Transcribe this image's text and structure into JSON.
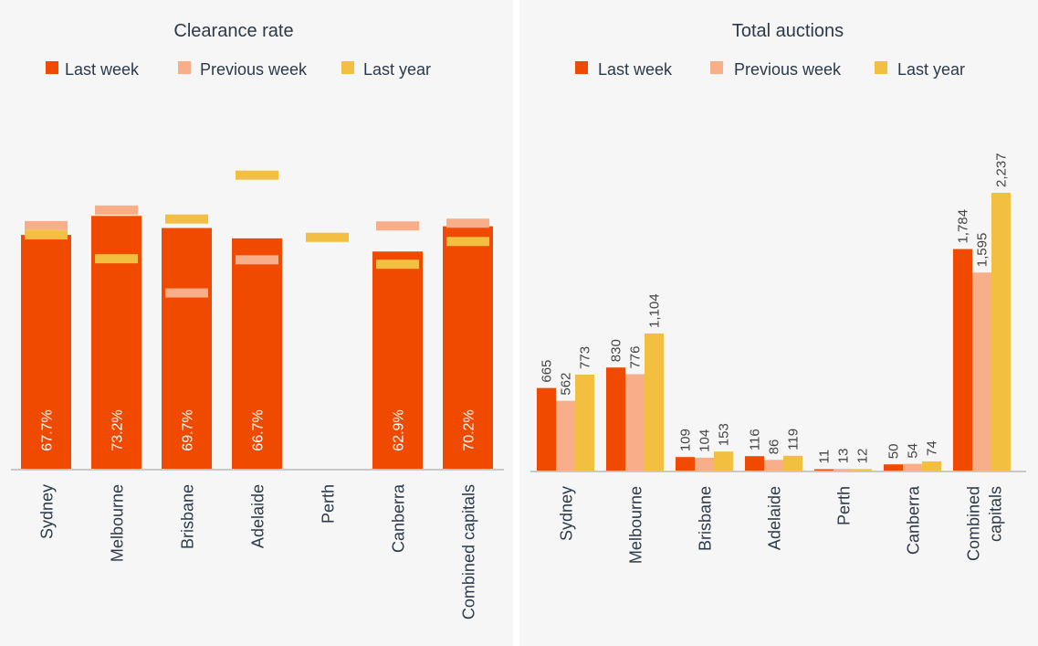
{
  "colors": {
    "last_week": "#f04a00",
    "previous_week": "#f8ae88",
    "last_year": "#f2bf40",
    "background": "#f6f6f6",
    "axis": "#999999"
  },
  "chart_data": [
    {
      "type": "bar",
      "title": "Clearance rate",
      "legend": [
        "Last week",
        "Previous week",
        "Last year"
      ],
      "categories": [
        "Sydney",
        "Melbourne",
        "Brisbane",
        "Adelaide",
        "Perth",
        "Canberra",
        "Combined capitals"
      ],
      "series": [
        {
          "name": "Last week",
          "values": [
            67.7,
            73.2,
            69.7,
            66.7,
            null,
            62.9,
            70.2
          ]
        },
        {
          "name": "Previous week",
          "values": [
            70.4,
            74.9,
            50.9,
            60.5,
            null,
            70.3,
            71.1
          ]
        },
        {
          "name": "Last year",
          "values": [
            67.7,
            60.8,
            72.3,
            85.0,
            67.0,
            59.2,
            65.8
          ]
        }
      ],
      "bar_labels": [
        "67.7%",
        "73.2%",
        "69.7%",
        "66.7%",
        "",
        "62.9%",
        "70.2%"
      ],
      "ylim": [
        0,
        100
      ],
      "xlabel": "",
      "ylabel": "",
      "legend_position": "top"
    },
    {
      "type": "bar",
      "title": "Total auctions",
      "legend": [
        "Last week",
        "Previous week",
        "Last year"
      ],
      "categories": [
        "Sydney",
        "Melbourne",
        "Brisbane",
        "Adelaide",
        "Perth",
        "Canberra",
        "Combined capitals"
      ],
      "series": [
        {
          "name": "Last week",
          "values": [
            665,
            830,
            109,
            116,
            11,
            50,
            1784
          ],
          "labels": [
            "665",
            "830",
            "109",
            "116",
            "11",
            "50",
            "1,784"
          ]
        },
        {
          "name": "Previous week",
          "values": [
            562,
            776,
            104,
            86,
            13,
            54,
            1595
          ],
          "labels": [
            "562",
            "776",
            "104",
            "86",
            "13",
            "54",
            "1,595"
          ]
        },
        {
          "name": "Last year",
          "values": [
            773,
            1104,
            153,
            119,
            12,
            74,
            2237
          ],
          "labels": [
            "773",
            "1,104",
            "153",
            "119",
            "12",
            "74",
            "2,237"
          ]
        }
      ],
      "ylim": [
        0,
        2237
      ],
      "xlabel": "",
      "ylabel": "",
      "legend_position": "top"
    }
  ]
}
